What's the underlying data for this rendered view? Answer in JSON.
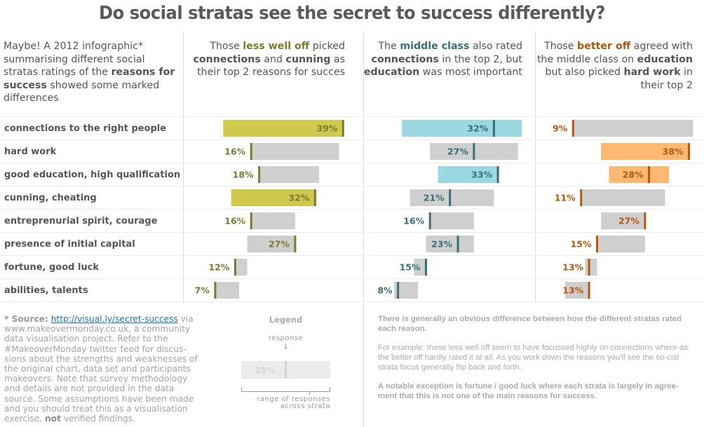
{
  "title": "Do social stratas see the secret to success differently?",
  "intro": {
    "t1": "Maybe! A 2012 infographic* summarising different social stratas ratings of the ",
    "b1": "reasons for success",
    "t2": " showed some marked differences"
  },
  "headers": [
    {
      "t1": "Those ",
      "h": "less well off",
      "t2": " picked ",
      "b1": "connections",
      "t3": " and ",
      "b2": "cunning",
      "t4": " as their top 2 reasons for succes"
    },
    {
      "t1": "The ",
      "h": "middle class",
      "t2": " also rated ",
      "b1": "connections",
      "t3": " in the top 2, but ",
      "b2": "education",
      "t4": " was most important"
    },
    {
      "t1": "Those ",
      "h": "better off",
      "t2": " agreed with the middle class on ",
      "b1": "education",
      "t3": " but also picked ",
      "b2": "hard work",
      "t4": " in their top 2"
    }
  ],
  "chart_data": {
    "type": "bar",
    "title": "Do social stratas see the secret to success differently?",
    "subtype": "range-with-marker",
    "categories": [
      "connections to the right people",
      "hard work",
      "good education, high qualification",
      "cunning, cheating",
      "entreprenurial spirit, courage",
      "presence of initial capital",
      "fortune, good luck",
      "abilities, talents"
    ],
    "series": [
      {
        "name": "less well off",
        "values": [
          39,
          16,
          18,
          32,
          16,
          27,
          12,
          7
        ],
        "highlight": [
          true,
          false,
          false,
          true,
          false,
          false,
          false,
          false
        ],
        "color": "#7b7a35",
        "fill": "#cfc94d"
      },
      {
        "name": "middle class",
        "values": [
          32,
          27,
          33,
          21,
          16,
          23,
          15,
          8
        ],
        "highlight": [
          true,
          false,
          true,
          false,
          false,
          false,
          false,
          false
        ],
        "color": "#3a6f78",
        "fill": "#99d8e1"
      },
      {
        "name": "better off",
        "values": [
          9,
          38,
          28,
          11,
          27,
          15,
          13,
          13
        ],
        "highlight": [
          false,
          true,
          true,
          false,
          false,
          false,
          false,
          false
        ],
        "color": "#b5570d",
        "fill": "#fdb872"
      }
    ],
    "range_color": "#cfcfcf",
    "unit": "%",
    "xlim": [
      0,
      42
    ]
  },
  "source": {
    "prefix": "* ",
    "label": "Source:",
    "link": "http://visual.ly/secret-success",
    "text": " via www.makeovermonday.co.uk, a community data visualisation project. Refer to the #MakeoverMonday twitter feed for discus-sions about the strengths and weaknesses of the original chart, data set and participants makeovers. Note that survey methodology and details are not provided in the data source. Some assumptions have been made and you should treat this as a visualisation exercise, ",
    "not": "not",
    "end": " verified findings."
  },
  "legend": {
    "title": "Legend",
    "response": "response",
    "arrow": "↓",
    "sample_value": "25%",
    "range_l1": "range of responses",
    "range_l2": "across strata"
  },
  "notes": {
    "p1": "There is generally an obvious difference between how the different stratas rated each reason.",
    "p2": "For example: those less well off seem to have focussed highly on connections where-as the better off hardly rated it at all. As you work down the reasons you'll see the so-cial strata focus generally flip back and forth.",
    "p3": "A notable exception is fortune / good luck where each strata is largely in agree-ment that this is not one of the main reasons for success."
  }
}
